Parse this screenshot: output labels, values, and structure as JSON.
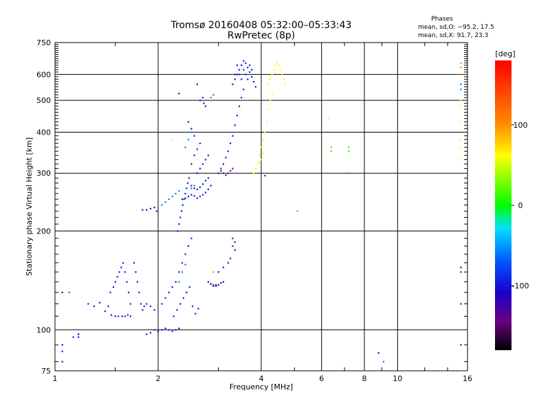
{
  "chart_data": {
    "type": "scatter",
    "title": "Tromsø 20160408 05:32:00–05:33:43",
    "subtitle": "RwPretec (8p)",
    "xlabel": "Frequency [MHz]",
    "ylabel": "Stationary phase Virtual Height [km]",
    "x_scale": "log",
    "y_scale": "log",
    "xlim": [
      1,
      16
    ],
    "ylim": [
      75,
      750
    ],
    "x_ticks": [
      1,
      2,
      4,
      6,
      8,
      10,
      16
    ],
    "x_tick_labels": [
      "1",
      "2",
      "4",
      "6",
      "8",
      "10",
      "16"
    ],
    "y_ticks": [
      75,
      100,
      200,
      300,
      400,
      500,
      600,
      750
    ],
    "y_tick_labels": [
      "75",
      "100",
      "200",
      "300",
      "400",
      "500",
      "600",
      "750"
    ],
    "grid": true,
    "annotation": {
      "heading": "Phases",
      "line1": "mean, sd,O: −95.2, 17.5",
      "line2": "mean, sd,X:  91.7, 23.3"
    },
    "colorbar": {
      "label": "[deg]",
      "range": [
        -180,
        180
      ],
      "ticks": [
        100,
        0,
        -100
      ],
      "tick_labels": [
        "100",
        "0",
        "-100"
      ]
    },
    "series": [
      {
        "mode": "O",
        "phase_deg": -100,
        "points": [
          [
            1.05,
            80
          ],
          [
            1.05,
            86
          ],
          [
            1.05,
            90
          ],
          [
            1.05,
            130
          ],
          [
            1.13,
            95
          ],
          [
            1.17,
            95
          ],
          [
            1.17,
            97
          ],
          [
            1.17,
            97
          ],
          [
            1.25,
            120
          ],
          [
            1.3,
            118
          ],
          [
            1.35,
            121
          ],
          [
            1.4,
            114
          ],
          [
            1.43,
            118
          ],
          [
            1.46,
            111
          ],
          [
            1.5,
            110
          ],
          [
            1.53,
            110
          ],
          [
            1.57,
            110
          ],
          [
            1.6,
            110
          ],
          [
            1.63,
            111
          ],
          [
            1.66,
            110
          ],
          [
            1.45,
            130
          ],
          [
            1.48,
            135
          ],
          [
            1.5,
            140
          ],
          [
            1.52,
            145
          ],
          [
            1.54,
            150
          ],
          [
            1.56,
            155
          ],
          [
            1.58,
            160
          ],
          [
            1.6,
            150
          ],
          [
            1.62,
            140
          ],
          [
            1.64,
            130
          ],
          [
            1.66,
            120
          ],
          [
            1.7,
            160
          ],
          [
            1.72,
            150
          ],
          [
            1.74,
            140
          ],
          [
            1.76,
            130
          ],
          [
            1.78,
            120
          ],
          [
            1.8,
            115
          ],
          [
            1.82,
            118
          ],
          [
            1.85,
            120
          ],
          [
            1.9,
            118
          ],
          [
            1.95,
            115
          ],
          [
            1.8,
            232
          ],
          [
            1.85,
            232
          ],
          [
            1.9,
            234
          ],
          [
            1.95,
            236
          ],
          [
            1.98,
            230
          ],
          [
            1.95,
            100
          ],
          [
            2.0,
            99
          ],
          [
            2.05,
            100
          ],
          [
            2.1,
            101
          ],
          [
            2.15,
            100
          ],
          [
            2.2,
            99
          ],
          [
            2.25,
            100
          ],
          [
            2.3,
            101
          ],
          [
            1.9,
            98
          ],
          [
            1.85,
            97
          ],
          [
            2.05,
            120
          ],
          [
            2.1,
            125
          ],
          [
            2.15,
            130
          ],
          [
            2.2,
            135
          ],
          [
            2.25,
            140
          ],
          [
            2.3,
            150
          ],
          [
            2.35,
            160
          ],
          [
            2.4,
            170
          ],
          [
            2.45,
            180
          ],
          [
            2.5,
            190
          ],
          [
            2.22,
            110
          ],
          [
            2.27,
            115
          ],
          [
            2.32,
            120
          ],
          [
            2.37,
            125
          ],
          [
            2.42,
            130
          ],
          [
            2.47,
            135
          ],
          [
            2.52,
            118
          ],
          [
            2.57,
            112
          ],
          [
            2.62,
            116
          ],
          [
            2.28,
            200
          ],
          [
            2.3,
            210
          ],
          [
            2.32,
            220
          ],
          [
            2.34,
            230
          ],
          [
            2.36,
            240
          ],
          [
            2.38,
            250
          ],
          [
            2.4,
            260
          ],
          [
            2.42,
            270
          ],
          [
            2.44,
            280
          ],
          [
            2.46,
            290
          ],
          [
            2.35,
            250
          ],
          [
            2.4,
            252
          ],
          [
            2.45,
            255
          ],
          [
            2.5,
            258
          ],
          [
            2.55,
            256
          ],
          [
            2.6,
            252
          ],
          [
            2.65,
            255
          ],
          [
            2.7,
            258
          ],
          [
            2.75,
            262
          ],
          [
            2.8,
            268
          ],
          [
            2.85,
            275
          ],
          [
            2.5,
            275
          ],
          [
            2.55,
            270
          ],
          [
            2.6,
            268
          ],
          [
            2.65,
            272
          ],
          [
            2.7,
            278
          ],
          [
            2.75,
            285
          ],
          [
            2.8,
            290
          ],
          [
            2.6,
            300
          ],
          [
            2.65,
            310
          ],
          [
            2.7,
            320
          ],
          [
            2.75,
            330
          ],
          [
            2.8,
            340
          ],
          [
            2.5,
            320
          ],
          [
            2.55,
            340
          ],
          [
            2.6,
            355
          ],
          [
            2.65,
            370
          ],
          [
            2.55,
            390
          ],
          [
            2.5,
            410
          ],
          [
            2.45,
            430
          ],
          [
            2.65,
            500
          ],
          [
            2.7,
            510
          ],
          [
            2.72,
            490
          ],
          [
            2.75,
            480
          ],
          [
            2.6,
            560
          ],
          [
            2.3,
            525
          ],
          [
            2.8,
            140
          ],
          [
            2.85,
            138
          ],
          [
            2.9,
            136
          ],
          [
            2.95,
            136
          ],
          [
            3.0,
            137
          ],
          [
            3.05,
            139
          ],
          [
            3.1,
            140
          ],
          [
            3.0,
            150
          ],
          [
            3.1,
            155
          ],
          [
            3.2,
            160
          ],
          [
            3.25,
            165
          ],
          [
            3.3,
            190
          ],
          [
            3.35,
            185
          ],
          [
            3.0,
            300
          ],
          [
            3.05,
            310
          ],
          [
            3.1,
            320
          ],
          [
            3.15,
            335
          ],
          [
            3.2,
            350
          ],
          [
            3.25,
            370
          ],
          [
            3.3,
            390
          ],
          [
            3.35,
            420
          ],
          [
            3.4,
            450
          ],
          [
            3.45,
            480
          ],
          [
            3.5,
            510
          ],
          [
            3.55,
            540
          ],
          [
            3.3,
            560
          ],
          [
            3.35,
            580
          ],
          [
            3.4,
            600
          ],
          [
            3.45,
            620
          ],
          [
            3.5,
            640
          ],
          [
            3.55,
            660
          ],
          [
            3.6,
            650
          ],
          [
            3.65,
            630
          ],
          [
            3.7,
            610
          ],
          [
            3.75,
            590
          ],
          [
            3.8,
            570
          ],
          [
            3.85,
            550
          ],
          [
            3.35,
            600
          ],
          [
            3.4,
            640
          ],
          [
            3.45,
            600
          ],
          [
            3.5,
            580
          ],
          [
            3.55,
            620
          ],
          [
            3.6,
            600
          ],
          [
            3.65,
            580
          ],
          [
            3.7,
            640
          ],
          [
            3.75,
            620
          ],
          [
            4.1,
            295
          ],
          [
            15.3,
            90
          ],
          [
            15.3,
            120
          ],
          [
            15.3,
            155
          ],
          [
            8.8,
            85
          ]
        ]
      },
      {
        "mode": "X",
        "phase_deg": 100,
        "points": [
          [
            3.8,
            300
          ],
          [
            3.85,
            310
          ],
          [
            3.9,
            320
          ],
          [
            3.95,
            340
          ],
          [
            4.0,
            360
          ],
          [
            4.05,
            380
          ],
          [
            4.1,
            400
          ],
          [
            4.15,
            430
          ],
          [
            4.2,
            470
          ],
          [
            4.25,
            500
          ],
          [
            4.3,
            520
          ],
          [
            4.2,
            560
          ],
          [
            4.25,
            580
          ],
          [
            4.3,
            600
          ],
          [
            4.35,
            620
          ],
          [
            4.4,
            640
          ],
          [
            4.45,
            650
          ],
          [
            4.5,
            640
          ],
          [
            4.55,
            620
          ],
          [
            4.6,
            600
          ],
          [
            4.65,
            580
          ],
          [
            4.7,
            560
          ],
          [
            4.0,
            330
          ],
          [
            4.05,
            345
          ],
          [
            3.95,
            325
          ],
          [
            6.3,
            440
          ],
          [
            15.3,
            480
          ],
          [
            15.3,
            500
          ],
          [
            15.3,
            430
          ],
          [
            15.3,
            380
          ],
          [
            15.3,
            360
          ],
          [
            15.3,
            330
          ],
          [
            2.2,
            380
          ],
          [
            2.2,
            75
          ],
          [
            1.8,
            74
          ]
        ]
      },
      {
        "mode": "other",
        "phase_deg": 140,
        "points": [
          [
            5.1,
            230
          ],
          [
            6.4,
            360
          ],
          [
            6.4,
            350
          ],
          [
            15.3,
            650
          ],
          [
            15.3,
            630
          ],
          [
            15.3,
            600
          ]
        ]
      },
      {
        "mode": "other",
        "phase_deg": 10,
        "points": [
          [
            7.2,
            360
          ],
          [
            7.2,
            350
          ],
          [
            2.9,
            150
          ]
        ]
      },
      {
        "mode": "other",
        "phase_deg": -60,
        "points": [
          [
            2.05,
            240
          ],
          [
            2.1,
            245
          ],
          [
            2.15,
            250
          ],
          [
            2.2,
            255
          ],
          [
            2.25,
            260
          ],
          [
            2.3,
            265
          ],
          [
            2.4,
            360
          ],
          [
            2.45,
            380
          ],
          [
            2.5,
            400
          ],
          [
            2.3,
            140
          ],
          [
            2.35,
            150
          ],
          [
            2.4,
            158
          ],
          [
            2.5,
            270
          ],
          [
            2.55,
            275
          ],
          [
            2.85,
            510
          ],
          [
            2.9,
            520
          ],
          [
            15.3,
            560
          ],
          [
            15.3,
            540
          ],
          [
            1.1,
            130
          ],
          [
            7.2,
            300
          ],
          [
            9.1,
            80
          ]
        ]
      },
      {
        "mode": "other",
        "phase_deg": -140,
        "points": [
          [
            3.05,
            305
          ],
          [
            3.1,
            300
          ],
          [
            3.15,
            296
          ],
          [
            3.2,
            300
          ],
          [
            3.25,
            305
          ],
          [
            3.3,
            310
          ],
          [
            2.85,
            138
          ],
          [
            2.9,
            137
          ],
          [
            2.95,
            137
          ],
          [
            3.3,
            180
          ],
          [
            3.35,
            175
          ],
          [
            15.3,
            150
          ]
        ]
      }
    ]
  }
}
